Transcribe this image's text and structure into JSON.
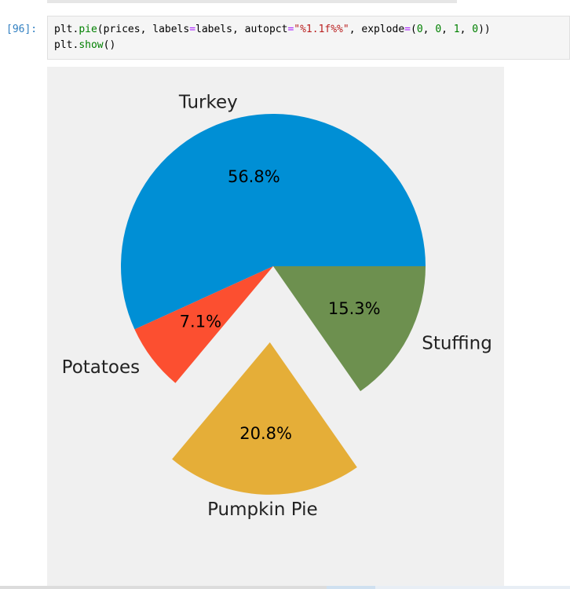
{
  "cell": {
    "prompt": "[96]:",
    "code_lines": [
      [
        {
          "t": "plt.",
          "c": "plain"
        },
        {
          "t": "pie",
          "c": "fn"
        },
        {
          "t": "(prices, labels",
          "c": "plain"
        },
        {
          "t": "=",
          "c": "op"
        },
        {
          "t": "labels, autopct",
          "c": "plain"
        },
        {
          "t": "=",
          "c": "op"
        },
        {
          "t": "\"%1.1f%%\"",
          "c": "str"
        },
        {
          "t": ", explode",
          "c": "plain"
        },
        {
          "t": "=",
          "c": "op"
        },
        {
          "t": "(",
          "c": "plain"
        },
        {
          "t": "0",
          "c": "num"
        },
        {
          "t": ", ",
          "c": "plain"
        },
        {
          "t": "0",
          "c": "num"
        },
        {
          "t": ", ",
          "c": "plain"
        },
        {
          "t": "1",
          "c": "num"
        },
        {
          "t": ", ",
          "c": "plain"
        },
        {
          "t": "0",
          "c": "num"
        },
        {
          "t": "))",
          "c": "plain"
        }
      ],
      [
        {
          "t": "plt.",
          "c": "plain"
        },
        {
          "t": "show",
          "c": "fn"
        },
        {
          "t": "()",
          "c": "plain"
        }
      ]
    ]
  },
  "colors": {
    "prompt": "#307fc1",
    "output_bg": "#f0f0f0"
  },
  "chart_data": {
    "type": "pie",
    "labels": [
      "Turkey",
      "Potatoes",
      "Pumpkin Pie",
      "Stuffing"
    ],
    "values": [
      56.8,
      7.1,
      20.8,
      15.3
    ],
    "autopct": [
      "56.8%",
      "7.1%",
      "20.8%",
      "15.3%"
    ],
    "explode": [
      0,
      0,
      1,
      0
    ],
    "colors": [
      "#008fd5",
      "#fc4f30",
      "#e5ae38",
      "#6d904f"
    ],
    "startangle": 0,
    "direction": "counterclockwise"
  }
}
